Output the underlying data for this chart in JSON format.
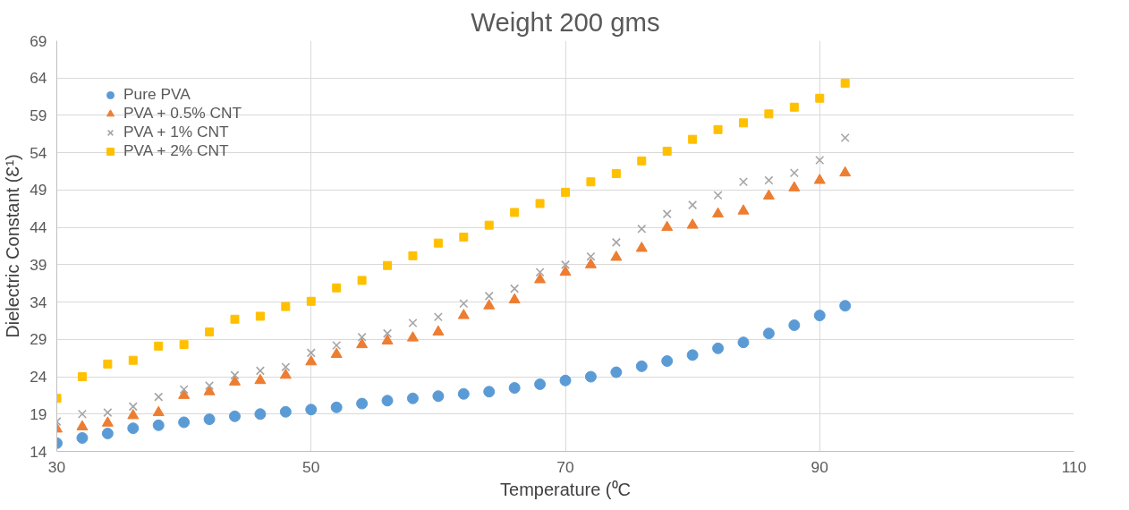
{
  "chart_data": {
    "type": "scatter",
    "title": "Weight 200 gms",
    "xlabel": "Temperature (⁰C",
    "ylabel": "Dielectric Constant (Ɛ¹)",
    "x": [
      30,
      32,
      34,
      36,
      38,
      40,
      42,
      44,
      46,
      48,
      50,
      52,
      54,
      56,
      58,
      60,
      62,
      64,
      66,
      68,
      70,
      72,
      74,
      76,
      78,
      80,
      82,
      84,
      86,
      88,
      90,
      92
    ],
    "xlim": [
      30,
      110
    ],
    "xticks": [
      30,
      50,
      70,
      90,
      110
    ],
    "ylim": [
      14,
      69
    ],
    "yticks": [
      14,
      19,
      24,
      29,
      34,
      39,
      44,
      49,
      54,
      59,
      64,
      69
    ],
    "grid": true,
    "legend": "top left",
    "series": [
      {
        "name": "Pure PVA",
        "color": "#5b9bd5",
        "marker": "circle",
        "values": [
          15.1,
          15.8,
          16.4,
          17.1,
          17.5,
          17.9,
          18.3,
          18.7,
          19.0,
          19.3,
          19.6,
          19.9,
          20.4,
          20.8,
          21.1,
          21.4,
          21.7,
          22.0,
          22.5,
          23.0,
          23.5,
          24.0,
          24.6,
          25.4,
          26.1,
          26.9,
          27.8,
          28.6,
          29.8,
          30.9,
          32.2,
          33.5
        ]
      },
      {
        "name": "PVA + 0.5% CNT",
        "color": "#ed7d31",
        "marker": "triangle",
        "values": [
          17,
          17.3,
          17.8,
          18.8,
          19.2,
          21.5,
          22,
          23.3,
          23.5,
          24.2,
          26,
          27,
          28.3,
          28.8,
          29.2,
          30,
          32.2,
          33.5,
          34.3,
          37,
          38,
          39,
          40,
          41.2,
          44,
          44.3,
          45.8,
          46.2,
          48.2,
          49.3,
          50.3,
          51.3
        ]
      },
      {
        "name": "PVA + 1% CNT",
        "color": "#a5a5a5",
        "marker": "cross",
        "values": [
          18,
          19,
          19.2,
          20,
          21.3,
          22.3,
          22.8,
          24.2,
          24.8,
          25.3,
          27.2,
          28.2,
          29.3,
          29.8,
          31.2,
          32,
          33.8,
          34.8,
          35.8,
          38,
          39,
          40.1,
          42,
          43.8,
          45.8,
          47,
          48.3,
          50.1,
          50.3,
          51.3,
          53,
          56
        ]
      },
      {
        "name": "PVA + 2% CNT",
        "color": "#ffc000",
        "marker": "square",
        "values": [
          21.1,
          24,
          25.7,
          26.2,
          28.1,
          28.3,
          30,
          31.7,
          32.1,
          33.4,
          34.1,
          35.9,
          36.9,
          38.9,
          40.2,
          41.9,
          42.7,
          44.3,
          46,
          47.2,
          48.7,
          50.1,
          51.2,
          52.9,
          54.2,
          55.8,
          57.1,
          58,
          59.2,
          60.1,
          61.3,
          63.3
        ]
      }
    ]
  }
}
